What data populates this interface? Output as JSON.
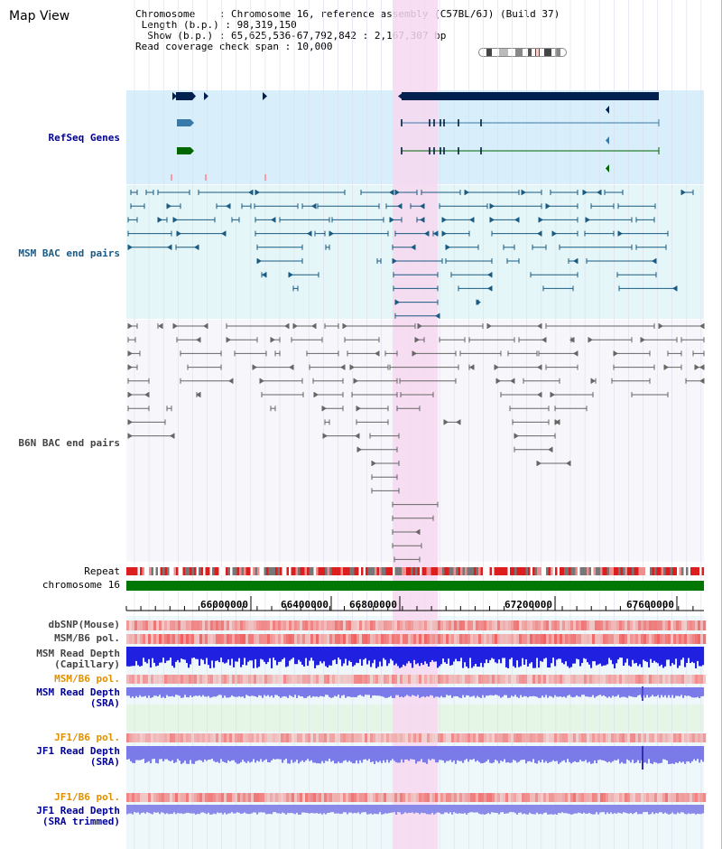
{
  "page_title": "Map View",
  "info": {
    "chromosome_line": "Chromosome    : Chromosome 16, reference assembly (C57BL/6J) (Build 37)",
    "length_line": " Length (b.p.) : 98,319,150",
    "show_line": "  Show (b.p.) : 65,625,536-67,792,842 : 2,167,307 bp",
    "coverage_line": "Read coverage check span : 10,000"
  },
  "tracks": {
    "refseq": "RefSeq Genes",
    "msm_bac": "MSM BAC end pairs",
    "b6n_bac": "B6N BAC end pairs",
    "repeat": "Repeat",
    "chromosome": "chromosome 16",
    "dbsnp": "dbSNP(Mouse)",
    "msm_pol": "MSM/B6 pol.",
    "msm_depth_cap_1": "MSM Read Depth",
    "msm_depth_cap_2": "(Capillary)",
    "msm_pol2": "MSM/B6 pol.",
    "msm_depth_sra_1": "MSM Read Depth",
    "msm_depth_sra_2": "(SRA)",
    "jf1_pol": "JF1/B6 pol.",
    "jf1_depth_sra_1": "JF1 Read Depth",
    "jf1_depth_sra_2": "(SRA)",
    "jf1_pol2": "JF1/B6 pol.",
    "jf1_depth_trim_1": "JF1 Read Depth",
    "jf1_depth_trim_2": "(SRA trimmed)"
  },
  "axis": {
    "ticks": [
      "66000000",
      "66400000",
      "66800000",
      "67200000",
      "67600000"
    ]
  },
  "colors": {
    "refseq_bg": "#d8eefa",
    "msm_bg": "#e4f6f8",
    "b6n_bg": "#f7f7fb",
    "highlight": "#f7d8f0",
    "gene_dark": "#002050",
    "gene_teal": "#3a7aa8",
    "gene_green": "#006600",
    "msm_pair": "#1a5a80",
    "b6n_pair": "#666666",
    "chromosome_bar": "#007700",
    "depth_blue": "#2020e0",
    "depth_light": "#7a7ae8",
    "pol_red": "#ee2020"
  }
}
